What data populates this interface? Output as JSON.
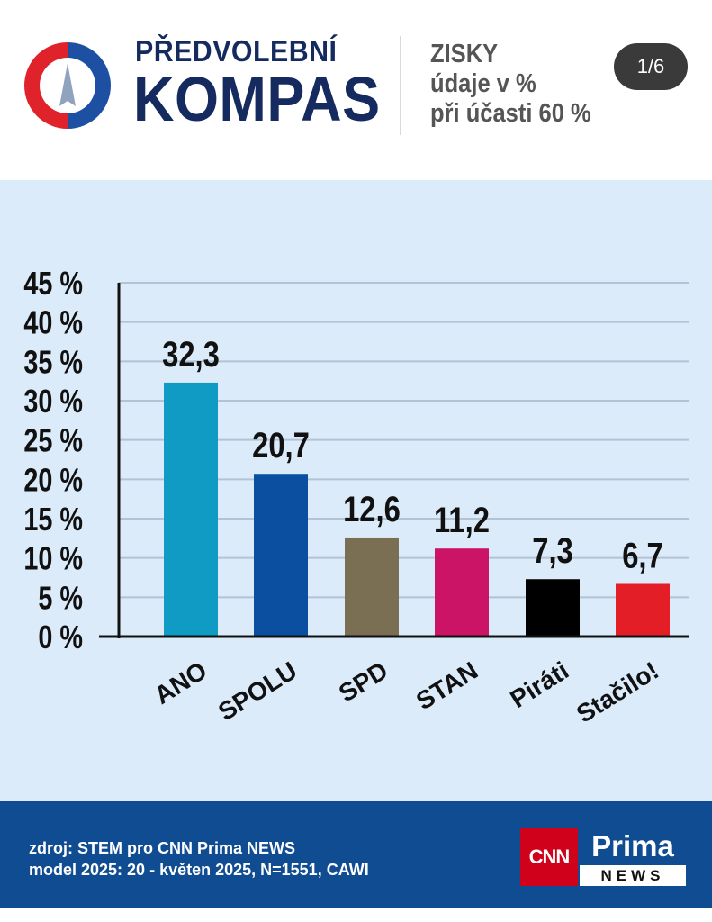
{
  "header": {
    "title_line1": "PŘEDVOLEBNÍ",
    "title_line2": "KOMPAS",
    "subtitle_lines": [
      "ZISKY",
      "údaje v %",
      "při účasti 60 %"
    ],
    "page_indicator": "1/6",
    "logo_colors": {
      "red": "#e0222b",
      "blue": "#1d4fa3",
      "needle": "#8fa3bf"
    }
  },
  "chart_data": {
    "type": "bar",
    "categories": [
      "ANO",
      "SPOLU",
      "SPD",
      "STAN",
      "Piráti",
      "Stačilo!"
    ],
    "values": [
      32.3,
      20.7,
      12.6,
      11.2,
      7.3,
      6.7
    ],
    "value_labels": [
      "32,3",
      "20,7",
      "12,6",
      "11,2",
      "7,3",
      "6,7"
    ],
    "colors": [
      "#0f9bc4",
      "#0a4fa0",
      "#7a6f52",
      "#cc1466",
      "#000000",
      "#e41e26"
    ],
    "ylim": [
      0,
      45
    ],
    "yticks": [
      0,
      5,
      10,
      15,
      20,
      25,
      30,
      35,
      40,
      45
    ],
    "ytick_labels": [
      "0 %",
      "5 %",
      "10 %",
      "15 %",
      "20 %",
      "25 %",
      "30 %",
      "35 %",
      "40 %",
      "45 %"
    ],
    "grid": true
  },
  "footer": {
    "source_lines": [
      "zdroj: STEM pro CNN Prima NEWS",
      "model 2025: 20 - květen 2025, N=1551, CAWI"
    ],
    "brand": {
      "cnn": "CNN",
      "prima": "Prima",
      "news": "NEWS"
    }
  }
}
